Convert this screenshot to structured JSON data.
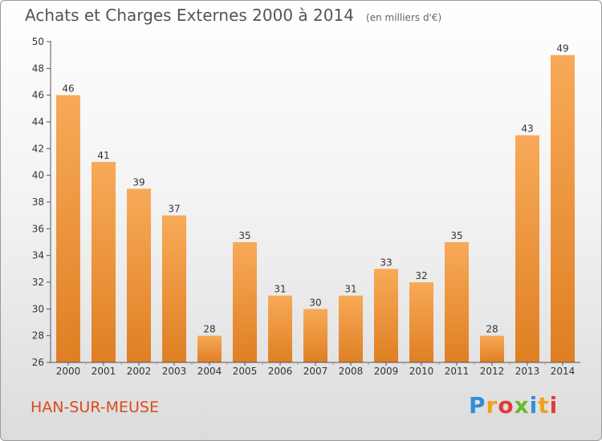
{
  "title": "Achats et Charges Externes 2000 à 2014",
  "unit_note": "(en milliers d'€)",
  "place": "HAN-SUR-MEUSE",
  "logo": {
    "letters": [
      "P",
      "r",
      "o",
      "x",
      "i",
      "t",
      "i"
    ],
    "colors": [
      "#2f8fd8",
      "#f0a020",
      "#e03c3c",
      "#6ab82e",
      "#2f8fd8",
      "#f0a020",
      "#e03c3c"
    ]
  },
  "colors": {
    "bar_light": "#f8aa58",
    "bar_dark": "#df7f23",
    "place_text": "#d94a1a"
  },
  "chart_data": {
    "type": "bar",
    "categories": [
      "2000",
      "2001",
      "2002",
      "2003",
      "2004",
      "2005",
      "2006",
      "2007",
      "2008",
      "2009",
      "2010",
      "2011",
      "2012",
      "2013",
      "2014"
    ],
    "values": [
      46,
      41,
      39,
      37,
      28,
      35,
      31,
      30,
      31,
      33,
      32,
      35,
      28,
      43,
      49
    ],
    "ylim": [
      26,
      50
    ],
    "yticks": [
      26,
      28,
      30,
      32,
      34,
      36,
      38,
      40,
      42,
      44,
      46,
      48,
      50
    ],
    "grid": false
  }
}
